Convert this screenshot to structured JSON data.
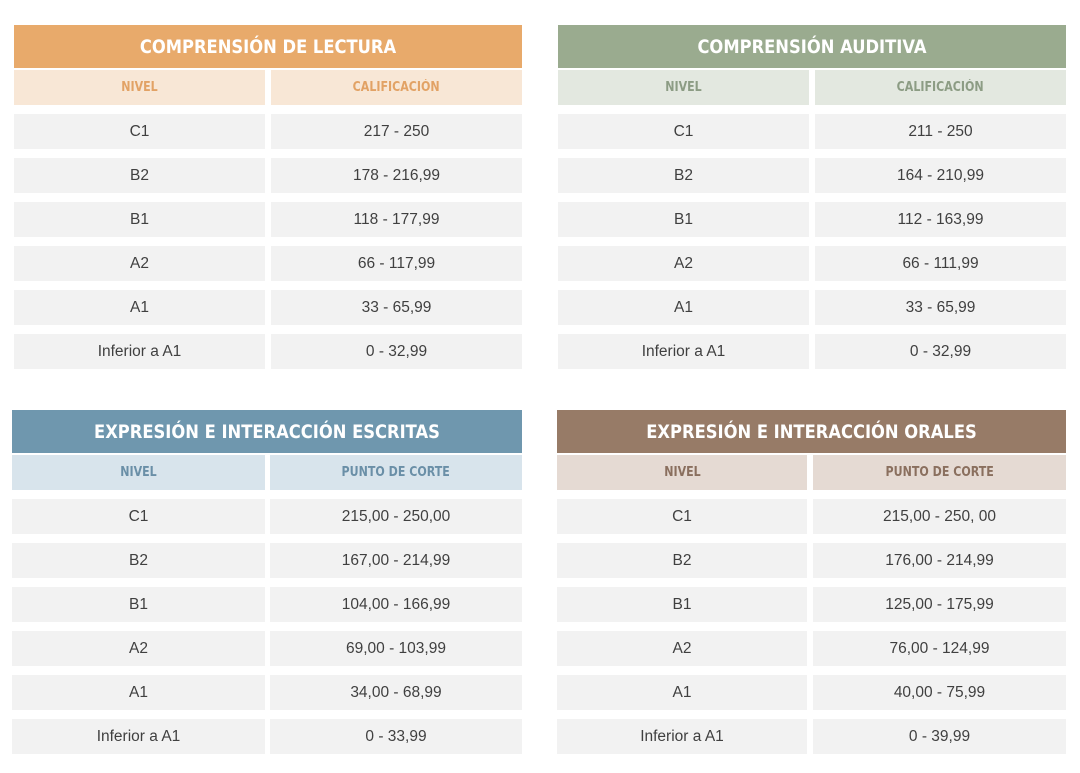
{
  "colors": {
    "lectura": {
      "title": "#e8aa6b",
      "header": "#f8e7d6",
      "header_text": "#e2a265"
    },
    "auditiva": {
      "title": "#9aab8f",
      "header": "#e3e8e0",
      "header_text": "#8c9c84"
    },
    "escritas": {
      "title": "#6f97ae",
      "header": "#d8e4ec",
      "header_text": "#6a8fa7"
    },
    "orales": {
      "title": "#977b67",
      "header": "#e5dad3",
      "header_text": "#8a6f5e"
    }
  },
  "panels": [
    {
      "title": "COMPRENSIÓN DE LECTURA",
      "col_level": "NIVEL",
      "col_score": "CALIFICACIÓN",
      "rows": [
        {
          "level": "C1",
          "range": "217 - 250"
        },
        {
          "level": "B2",
          "range": "178 - 216,99"
        },
        {
          "level": "B1",
          "range": "118 - 177,99"
        },
        {
          "level": "A2",
          "range": "66 - 117,99"
        },
        {
          "level": "A1",
          "range": "33 - 65,99"
        },
        {
          "level": "Inferior a A1",
          "range": "0 - 32,99"
        }
      ]
    },
    {
      "title": "COMPRENSIÓN AUDITIVA",
      "col_level": "NIVEL",
      "col_score": "CALIFICACIÓN",
      "rows": [
        {
          "level": "C1",
          "range": "211 - 250"
        },
        {
          "level": "B2",
          "range": "164 - 210,99"
        },
        {
          "level": "B1",
          "range": "112 - 163,99"
        },
        {
          "level": "A2",
          "range": "66 - 111,99"
        },
        {
          "level": "A1",
          "range": "33 - 65,99"
        },
        {
          "level": "Inferior a A1",
          "range": "0 - 32,99"
        }
      ]
    },
    {
      "title": "EXPRESIÓN E INTERACCIÓN ESCRITAS",
      "col_level": "NIVEL",
      "col_score": "PUNTO DE CORTE",
      "rows": [
        {
          "level": "C1",
          "range": "215,00 - 250,00"
        },
        {
          "level": "B2",
          "range": "167,00 - 214,99"
        },
        {
          "level": "B1",
          "range": "104,00 - 166,99"
        },
        {
          "level": "A2",
          "range": "69,00 - 103,99"
        },
        {
          "level": "A1",
          "range": "34,00 - 68,99"
        },
        {
          "level": "Inferior a A1",
          "range": "0 - 33,99"
        }
      ]
    },
    {
      "title": "EXPRESIÓN E INTERACCIÓN ORALES",
      "col_level": "NIVEL",
      "col_score": "PUNTO DE CORTE",
      "rows": [
        {
          "level": "C1",
          "range": "215,00 - 250, 00"
        },
        {
          "level": "B2",
          "range": "176,00 - 214,99"
        },
        {
          "level": "B1",
          "range": "125,00 - 175,99"
        },
        {
          "level": "A2",
          "range": "76,00 - 124,99"
        },
        {
          "level": "A1",
          "range": "40,00 - 75,99"
        },
        {
          "level": "Inferior a A1",
          "range": "0 - 39,99"
        }
      ]
    }
  ]
}
